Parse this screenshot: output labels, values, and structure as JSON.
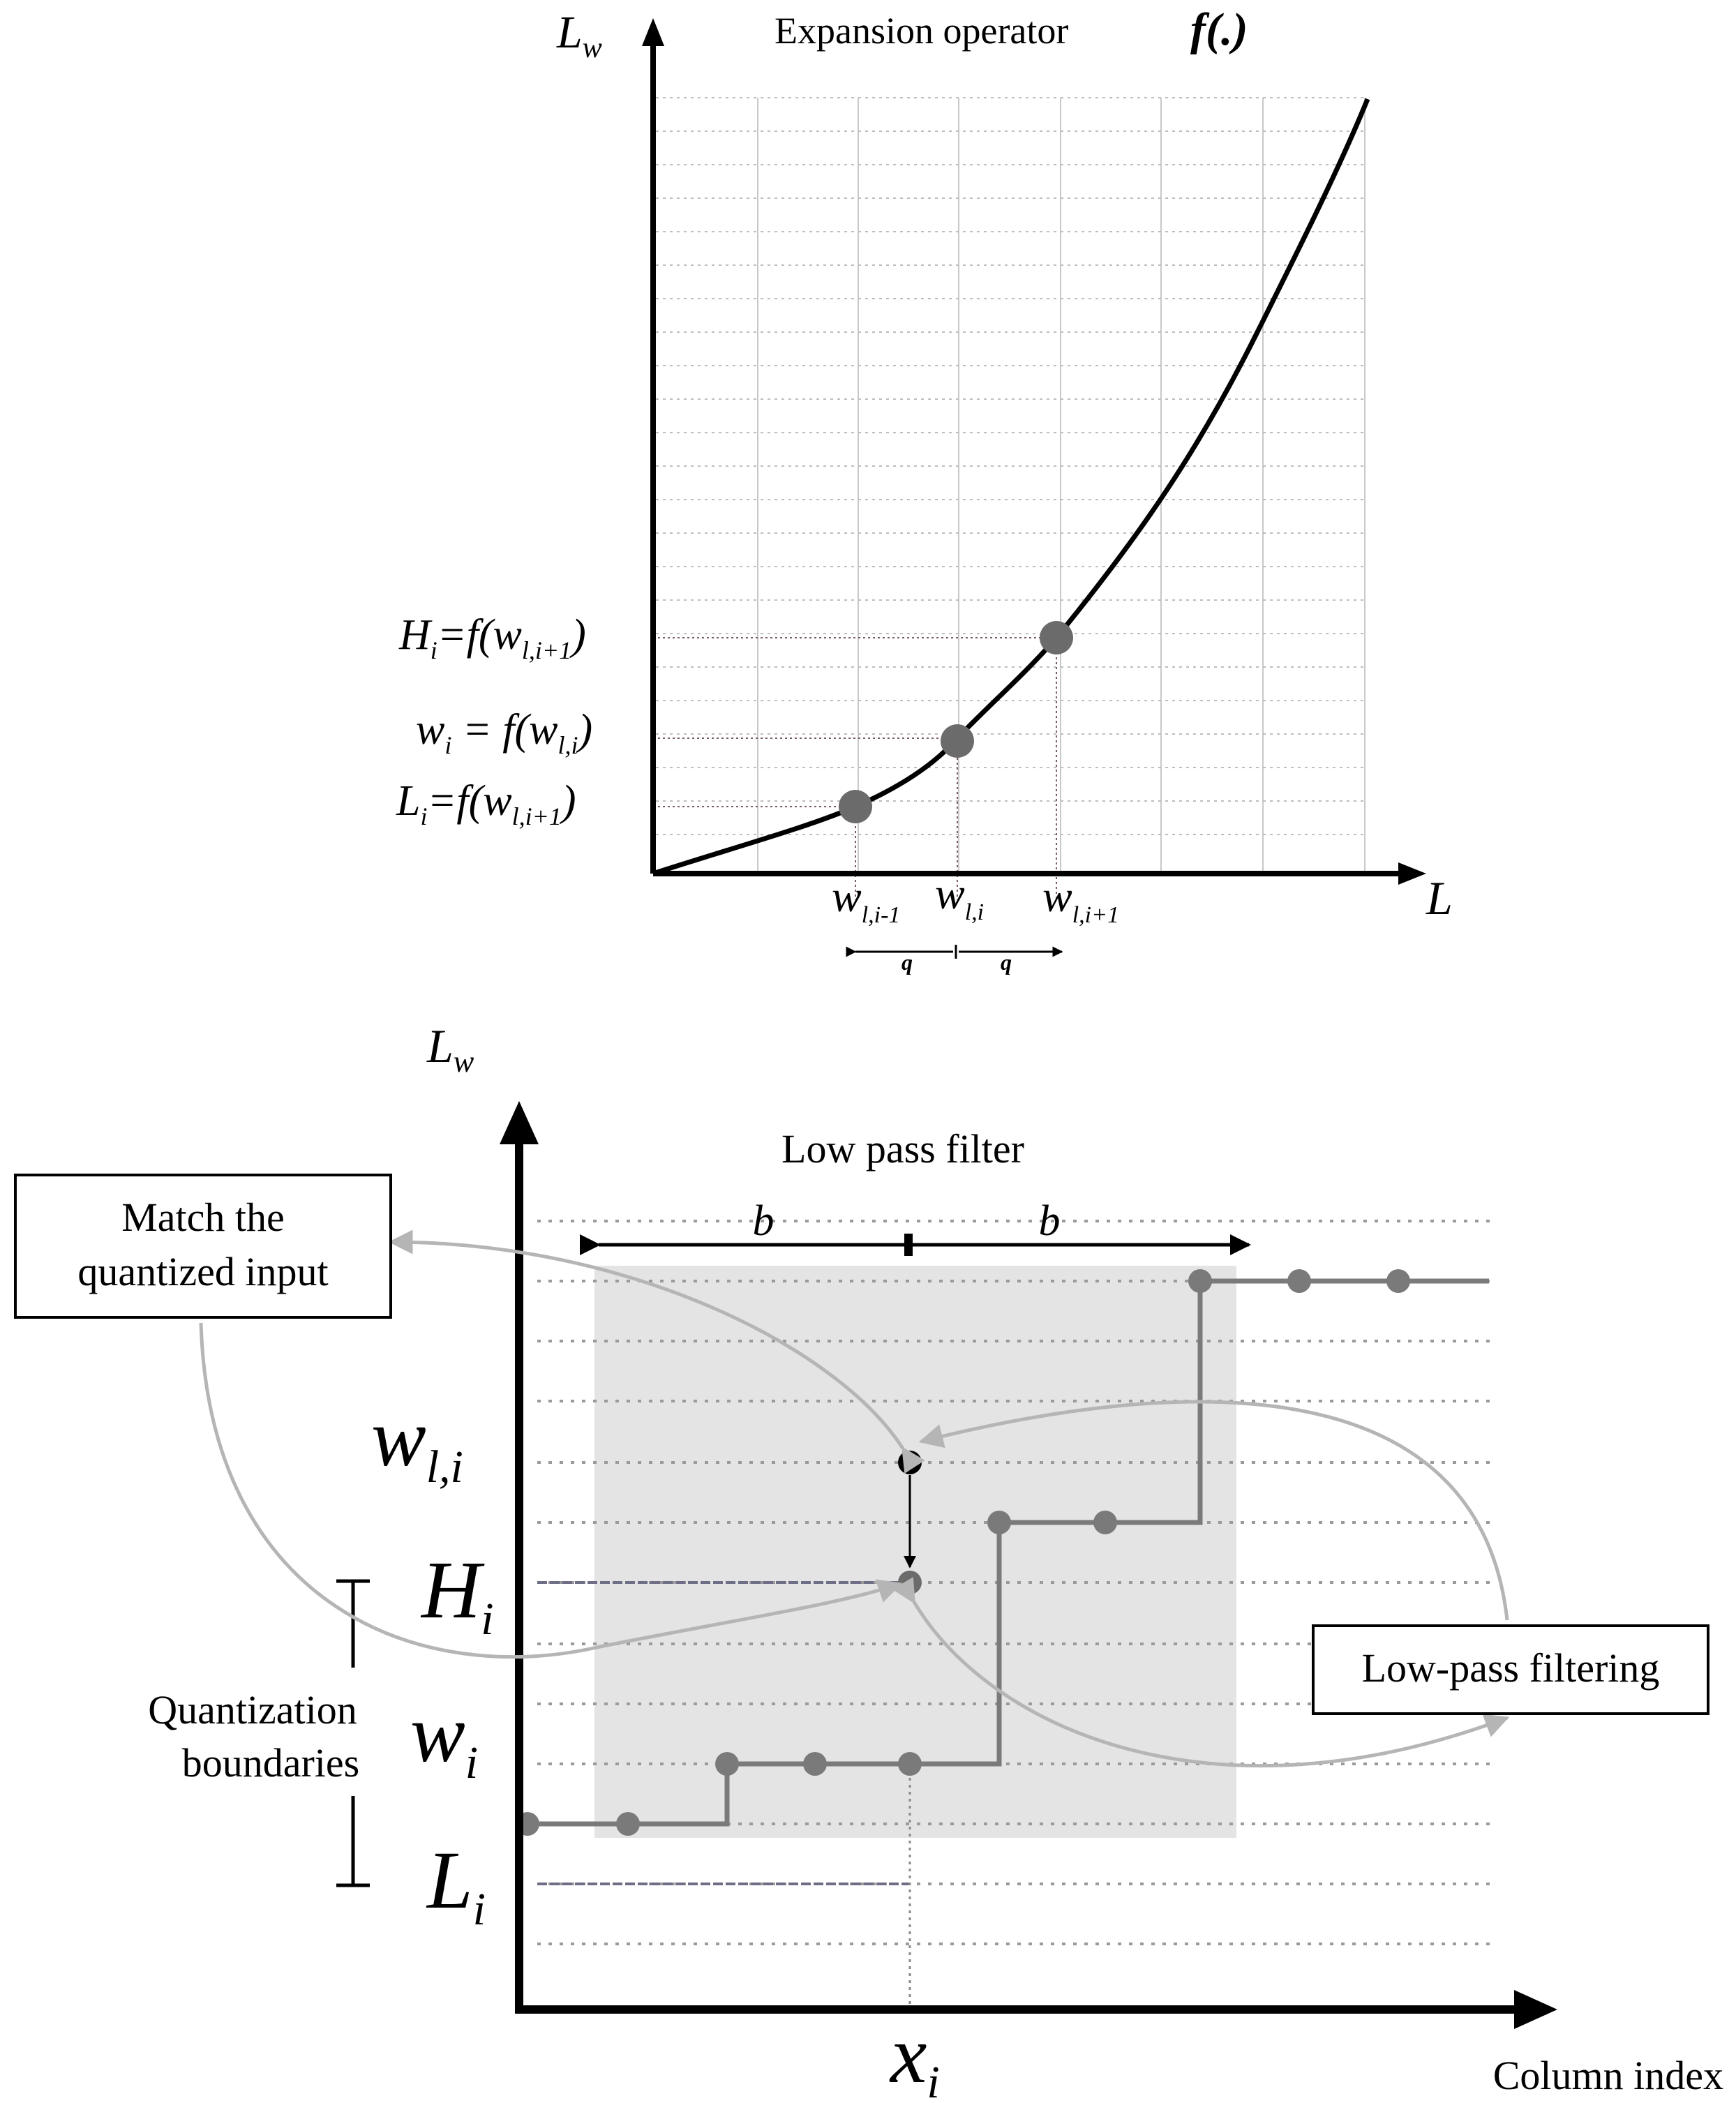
{
  "top": {
    "title": "Expansion operator",
    "title_func": "f(.)",
    "y_axis": {
      "main": "L",
      "sub": "w"
    },
    "x_axis": "L",
    "levels": [
      {
        "lhs_main": "H",
        "lhs_sub": "i",
        "mid": "=f(w",
        "arg_sub": "l,i+1",
        "close": ")"
      },
      {
        "lhs_main": "w",
        "lhs_sub": "i",
        "mid": " = f(w",
        "arg_sub": "l,i",
        "close": ")"
      },
      {
        "lhs_main": "L",
        "lhs_sub": "i",
        "mid": "=f(w",
        "arg_sub": "l,i+1",
        "close": ")"
      }
    ],
    "x_ticks": [
      {
        "main": "w",
        "sub": "l,i-1"
      },
      {
        "main": "w",
        "sub": "l,i"
      },
      {
        "main": "w",
        "sub": "l,i+1"
      }
    ],
    "spacing": [
      "q",
      "q"
    ]
  },
  "bottom": {
    "y_axis": {
      "main": "L",
      "sub": "w"
    },
    "x_axis": "Column index",
    "filter_title": "Low pass filter",
    "half_width": [
      "b",
      "b"
    ],
    "box_match": [
      "Match the",
      "quantized input"
    ],
    "box_lowpass": "Low-pass filtering",
    "quant_label": [
      "Quantization",
      "boundaries"
    ],
    "row_labels": [
      {
        "main": "w",
        "sub": "l,i"
      },
      {
        "main": "H",
        "sub": "i"
      },
      {
        "main": "w",
        "sub": "i"
      },
      {
        "main": "L",
        "sub": "i"
      }
    ],
    "x_label": {
      "main": "x",
      "sub": "i"
    }
  },
  "colors": {
    "axis": "#000000",
    "grid": "#c0c0c0",
    "dot": "#6b6b6b",
    "step": "#7a7a7a",
    "shade": "#e4e4e4",
    "arrow_light": "#b5b5b5",
    "ref_line": "#6e6e86"
  }
}
